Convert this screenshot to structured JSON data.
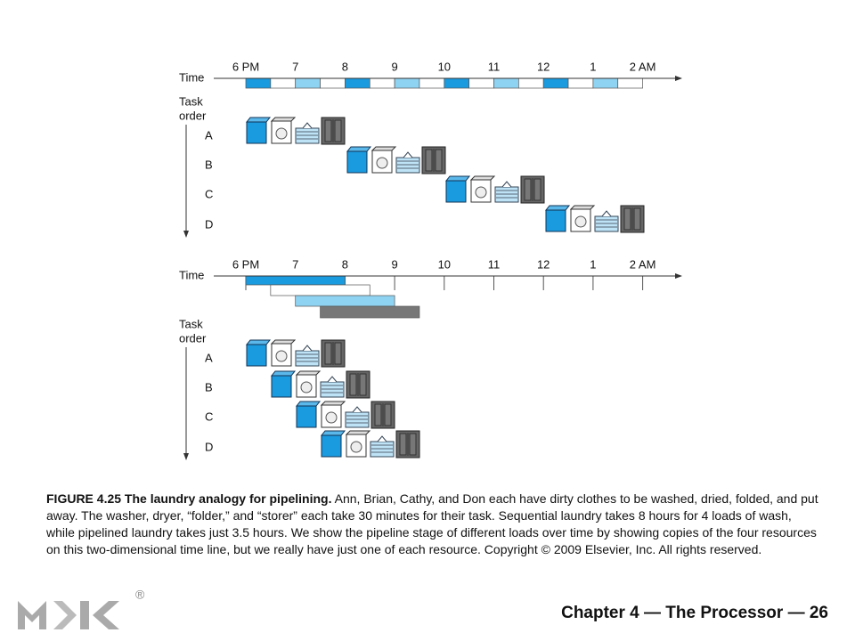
{
  "diagrams": [
    {
      "time_label": "Time",
      "hours": [
        "6 PM",
        "7",
        "8",
        "9",
        "10",
        "11",
        "12",
        "1",
        "2 AM"
      ],
      "task_order": [
        "Task",
        "order"
      ],
      "tasks": [
        "A",
        "B",
        "C",
        "D"
      ]
    },
    {
      "time_label": "Time",
      "hours": [
        "6 PM",
        "7",
        "8",
        "9",
        "10",
        "11",
        "12",
        "1",
        "2 AM"
      ],
      "task_order": [
        "Task",
        "order"
      ],
      "tasks": [
        "A",
        "B",
        "C",
        "D"
      ]
    }
  ],
  "caption": {
    "figure": "FIGURE 4.25 The laundry analogy for pipelining.",
    "text": "Ann, Brian, Cathy, and Don each have dirty clothes to be washed, dried, folded, and put away. The washer, dryer, “folder,” and “storer” each take 30 minutes for their task. Sequential laundry takes 8 hours for 4 loads of wash, while pipelined laundry takes just 3.5 hours. We show the pipeline stage of different loads over time by showing copies of the four resources on this two-dimensional time line, but we really have just one of each resource. Copyright © 2009 Elsevier, Inc. All rights reserved."
  },
  "logo_mark": "®",
  "footer": "Chapter 4 — The Processor — 26"
}
